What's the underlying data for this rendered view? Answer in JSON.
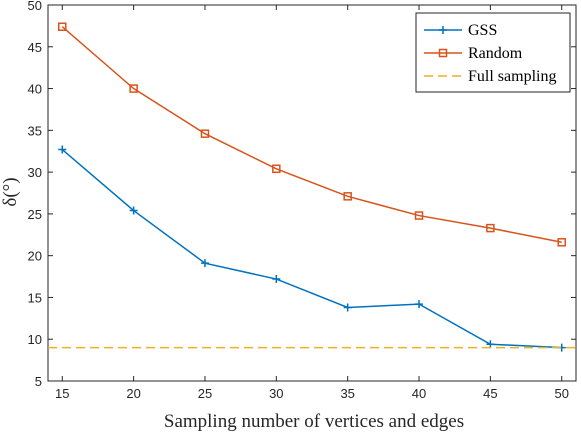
{
  "chart_data": {
    "type": "line",
    "xlabel": "Sampling number of vertices and edges",
    "ylabel": "δ(°)",
    "xlim": [
      14,
      51
    ],
    "ylim": [
      5,
      50
    ],
    "xticks": [
      15,
      20,
      25,
      30,
      35,
      40,
      45,
      50
    ],
    "yticks": [
      5,
      10,
      15,
      20,
      25,
      30,
      35,
      40,
      45,
      50
    ],
    "x": [
      15,
      20,
      25,
      30,
      35,
      40,
      45,
      50
    ],
    "series": [
      {
        "name": "GSS",
        "marker": "plus",
        "color": "#0072bd",
        "values": [
          32.7,
          25.4,
          19.1,
          17.2,
          13.8,
          14.2,
          9.4,
          9.0
        ]
      },
      {
        "name": "Random",
        "marker": "square",
        "color": "#d95319",
        "values": [
          47.4,
          40.0,
          34.6,
          30.4,
          27.1,
          24.8,
          23.3,
          21.6
        ]
      },
      {
        "name": "Full sampling",
        "marker": "none",
        "color": "#edb120",
        "style": "dashed",
        "constant": 9.0
      }
    ],
    "grid": false,
    "legend": "top-right"
  }
}
